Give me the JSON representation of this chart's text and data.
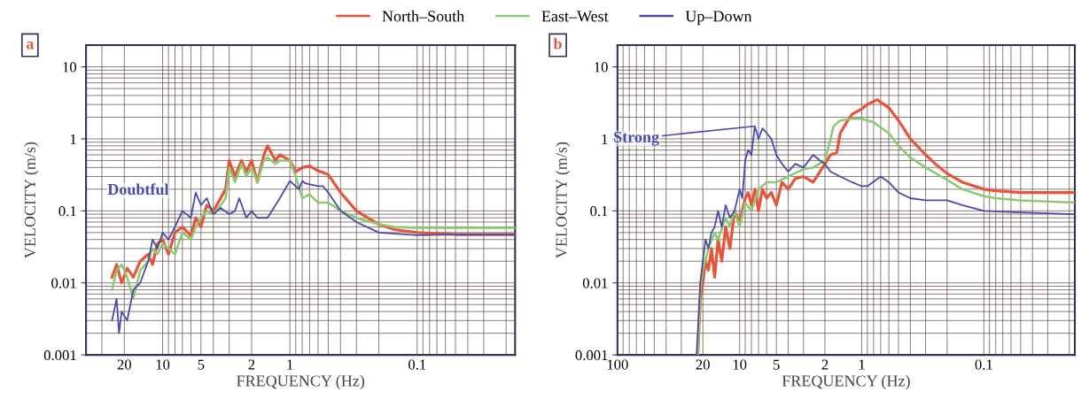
{
  "chart_data": [
    {
      "type": "line",
      "title": "a",
      "xlabel": "FREQUENCY (Hz)",
      "ylabel": "VELOCITY (m/s)",
      "log": "xy",
      "grid": true,
      "legend": "top",
      "marker": "none",
      "line_style": "solid",
      "xlim": [
        40,
        0.017
      ],
      "xticks": [
        20,
        10,
        5,
        2,
        1,
        0.1
      ],
      "ylim": [
        0.001,
        20
      ],
      "yticks": [
        0.001,
        0.01,
        0.1,
        1,
        10
      ],
      "annotations": [
        "Doubtful"
      ],
      "series": [
        {
          "name": "North–South",
          "color": "#e8543a",
          "x": [
            25,
            23,
            21,
            19,
            17,
            15,
            13,
            12,
            11,
            10,
            9,
            8,
            7,
            6,
            5.5,
            5,
            4.5,
            4,
            3.5,
            3.2,
            3,
            2.7,
            2.4,
            2.2,
            2,
            1.8,
            1.6,
            1.5,
            1.3,
            1.2,
            1,
            0.9,
            0.8,
            0.7,
            0.6,
            0.5,
            0.4,
            0.3,
            0.2,
            0.15,
            0.1,
            0.05,
            0.017
          ],
          "values": [
            0.012,
            0.018,
            0.01,
            0.016,
            0.012,
            0.02,
            0.025,
            0.018,
            0.035,
            0.04,
            0.025,
            0.05,
            0.06,
            0.045,
            0.08,
            0.06,
            0.12,
            0.1,
            0.15,
            0.2,
            0.5,
            0.3,
            0.5,
            0.35,
            0.5,
            0.25,
            0.6,
            0.8,
            0.5,
            0.6,
            0.5,
            0.35,
            0.4,
            0.42,
            0.36,
            0.32,
            0.18,
            0.1,
            0.065,
            0.055,
            0.05,
            0.047,
            0.047
          ]
        },
        {
          "name": "East–West",
          "color": "#8cc870",
          "x": [
            25,
            23,
            21,
            19,
            17,
            15,
            13,
            12,
            11,
            10,
            9,
            8,
            7,
            6,
            5.5,
            5,
            4.5,
            4,
            3.5,
            3.2,
            3,
            2.7,
            2.4,
            2.2,
            2,
            1.8,
            1.6,
            1.5,
            1.3,
            1.2,
            1,
            0.9,
            0.8,
            0.7,
            0.6,
            0.5,
            0.4,
            0.3,
            0.2,
            0.15,
            0.1,
            0.05,
            0.017
          ],
          "values": [
            0.008,
            0.015,
            0.018,
            0.012,
            0.006,
            0.015,
            0.02,
            0.03,
            0.025,
            0.035,
            0.03,
            0.025,
            0.05,
            0.04,
            0.06,
            0.08,
            0.1,
            0.09,
            0.12,
            0.15,
            0.4,
            0.25,
            0.45,
            0.3,
            0.4,
            0.25,
            0.5,
            0.55,
            0.45,
            0.5,
            0.5,
            0.3,
            0.15,
            0.17,
            0.13,
            0.13,
            0.1,
            0.08,
            0.065,
            0.06,
            0.058,
            0.058,
            0.058
          ]
        },
        {
          "name": "Up–Down",
          "color": "#4a4aa8",
          "x": [
            25,
            23,
            22,
            21,
            19,
            17,
            15,
            13,
            12,
            11,
            10,
            9,
            8,
            7,
            6,
            5.5,
            5,
            4.5,
            4,
            3.5,
            3,
            2.7,
            2.5,
            2.2,
            2,
            1.8,
            1.5,
            1.2,
            1,
            0.9,
            0.85,
            0.8,
            0.75,
            0.6,
            0.55,
            0.5,
            0.4,
            0.3,
            0.2,
            0.1,
            0.05,
            0.017
          ],
          "values": [
            0.003,
            0.006,
            0.002,
            0.004,
            0.003,
            0.008,
            0.01,
            0.02,
            0.04,
            0.03,
            0.05,
            0.04,
            0.06,
            0.1,
            0.08,
            0.18,
            0.12,
            0.15,
            0.09,
            0.11,
            0.09,
            0.1,
            0.15,
            0.08,
            0.1,
            0.08,
            0.08,
            0.15,
            0.26,
            0.22,
            0.2,
            0.26,
            0.24,
            0.22,
            0.22,
            0.18,
            0.1,
            0.07,
            0.05,
            0.046,
            0.047,
            0.047
          ]
        }
      ]
    },
    {
      "type": "line",
      "title": "b",
      "xlabel": "FREQUENCY (Hz)",
      "ylabel": "VELOCITY (m/s)",
      "log": "xy",
      "grid": true,
      "legend": "top",
      "marker": "none",
      "line_style": "solid",
      "xlim": [
        100,
        0.018
      ],
      "xticks": [
        100,
        20,
        10,
        5,
        2,
        1,
        0.1
      ],
      "ylim": [
        0.001,
        20
      ],
      "yticks": [
        0.001,
        0.01,
        0.1,
        1,
        10
      ],
      "annotations": [
        {
          "text": "Strong",
          "x": 7.5,
          "y": 1.5
        }
      ],
      "series": [
        {
          "name": "North–South",
          "color": "#e8543a",
          "x": [
            22,
            21,
            20,
            19,
            18,
            17,
            16,
            15,
            14,
            13,
            12,
            11,
            10,
            9,
            8.5,
            8,
            7.5,
            7,
            6.5,
            6,
            5.5,
            5,
            4.5,
            4,
            3.5,
            3,
            2.5,
            2,
            1.8,
            1.6,
            1.5,
            1.3,
            1.2,
            1,
            0.9,
            0.75,
            0.6,
            0.5,
            0.4,
            0.3,
            0.25,
            0.2,
            0.15,
            0.1,
            0.08,
            0.05,
            0.018
          ],
          "values": [
            0.001,
            0.006,
            0.01,
            0.02,
            0.015,
            0.03,
            0.012,
            0.04,
            0.02,
            0.06,
            0.03,
            0.1,
            0.07,
            0.15,
            0.18,
            0.12,
            0.2,
            0.1,
            0.2,
            0.15,
            0.18,
            0.12,
            0.25,
            0.2,
            0.28,
            0.3,
            0.25,
            0.45,
            0.6,
            0.65,
            1.2,
            1.8,
            2.2,
            2.6,
            3.0,
            3.5,
            2.7,
            1.8,
            1.0,
            0.6,
            0.45,
            0.33,
            0.25,
            0.2,
            0.19,
            0.18,
            0.18
          ]
        },
        {
          "name": "East–West",
          "color": "#8cc870",
          "x": [
            22,
            21,
            20,
            18,
            16,
            15,
            13,
            12,
            11,
            10,
            9,
            8,
            7,
            6,
            5,
            4,
            3,
            2.5,
            2,
            1.8,
            1.7,
            1.5,
            1.2,
            1,
            0.8,
            0.6,
            0.5,
            0.4,
            0.3,
            0.2,
            0.15,
            0.1,
            0.08,
            0.05,
            0.018
          ],
          "values": [
            0.001,
            0.008,
            0.015,
            0.03,
            0.05,
            0.04,
            0.08,
            0.06,
            0.1,
            0.06,
            0.13,
            0.1,
            0.2,
            0.25,
            0.25,
            0.3,
            0.38,
            0.4,
            0.5,
            1.0,
            1.5,
            1.8,
            1.9,
            1.9,
            1.7,
            1.2,
            0.8,
            0.55,
            0.4,
            0.27,
            0.2,
            0.16,
            0.15,
            0.14,
            0.13
          ]
        },
        {
          "name": "Up–Down",
          "color": "#4a4aa8",
          "x": [
            22.5,
            21,
            20,
            19,
            18,
            17,
            16,
            15,
            14,
            13,
            12,
            11,
            10,
            9.5,
            9,
            8.5,
            8,
            7.5,
            7,
            6.5,
            6,
            5.5,
            5,
            4.5,
            4,
            3.5,
            3,
            2.5,
            2.2,
            2,
            1.8,
            1.5,
            1.2,
            1,
            0.9,
            0.7,
            0.6,
            0.5,
            0.4,
            0.3,
            0.2,
            0.15,
            0.1,
            0.05,
            0.018
          ],
          "values": [
            0.001,
            0.01,
            0.02,
            0.04,
            0.03,
            0.05,
            0.06,
            0.1,
            0.06,
            0.12,
            0.08,
            0.1,
            0.2,
            0.15,
            0.5,
            0.7,
            0.6,
            1.5,
            1.0,
            1.4,
            1.2,
            1.0,
            0.6,
            0.45,
            0.35,
            0.45,
            0.4,
            0.6,
            0.5,
            0.45,
            0.35,
            0.3,
            0.25,
            0.22,
            0.22,
            0.3,
            0.25,
            0.18,
            0.15,
            0.14,
            0.14,
            0.12,
            0.1,
            0.095,
            0.09
          ]
        }
      ]
    }
  ]
}
